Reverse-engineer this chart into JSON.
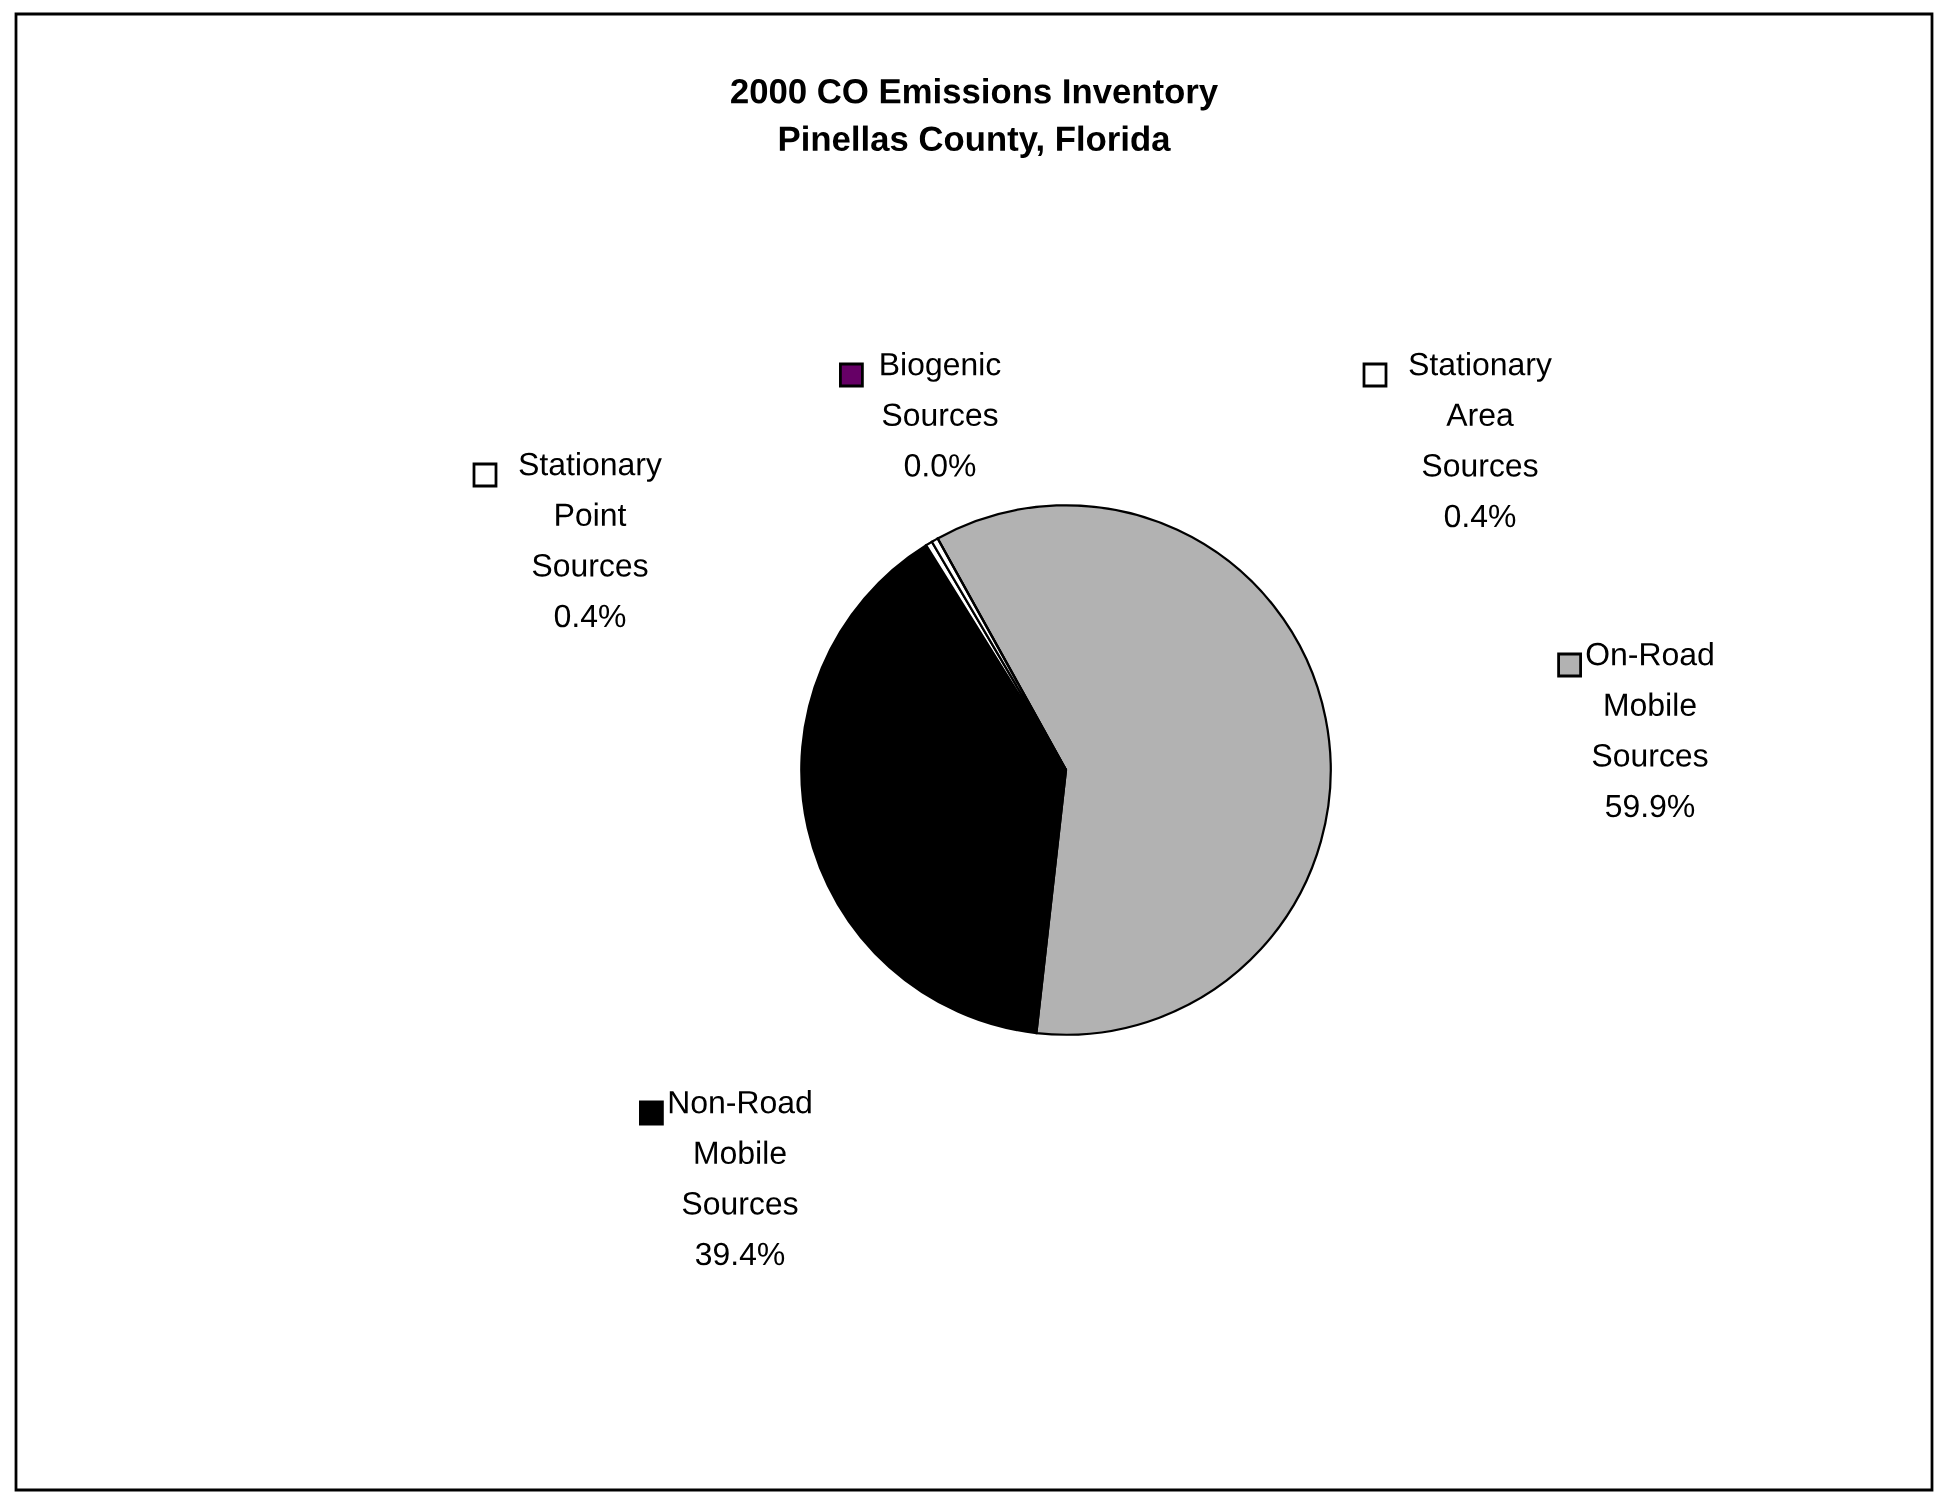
{
  "chart_data": {
    "type": "pie",
    "title": "2000 CO Emissions Inventory\nPinellas County, Florida",
    "categories": [
      "On-Road Mobile Sources",
      "Non-Road Mobile Sources",
      "Stationary Point Sources",
      "Stationary Area Sources",
      "Biogenic Sources"
    ],
    "values": [
      59.9,
      39.4,
      0.4,
      0.4,
      0.0
    ],
    "colors": [
      "#b2b2b2",
      "#000000",
      "#ffffff",
      "#ffffff",
      "#660066"
    ],
    "value_labels": [
      "59.9%",
      "39.4%",
      "0.4%",
      "0.4%",
      "0.0%"
    ],
    "legend": "bottom right"
  }
}
